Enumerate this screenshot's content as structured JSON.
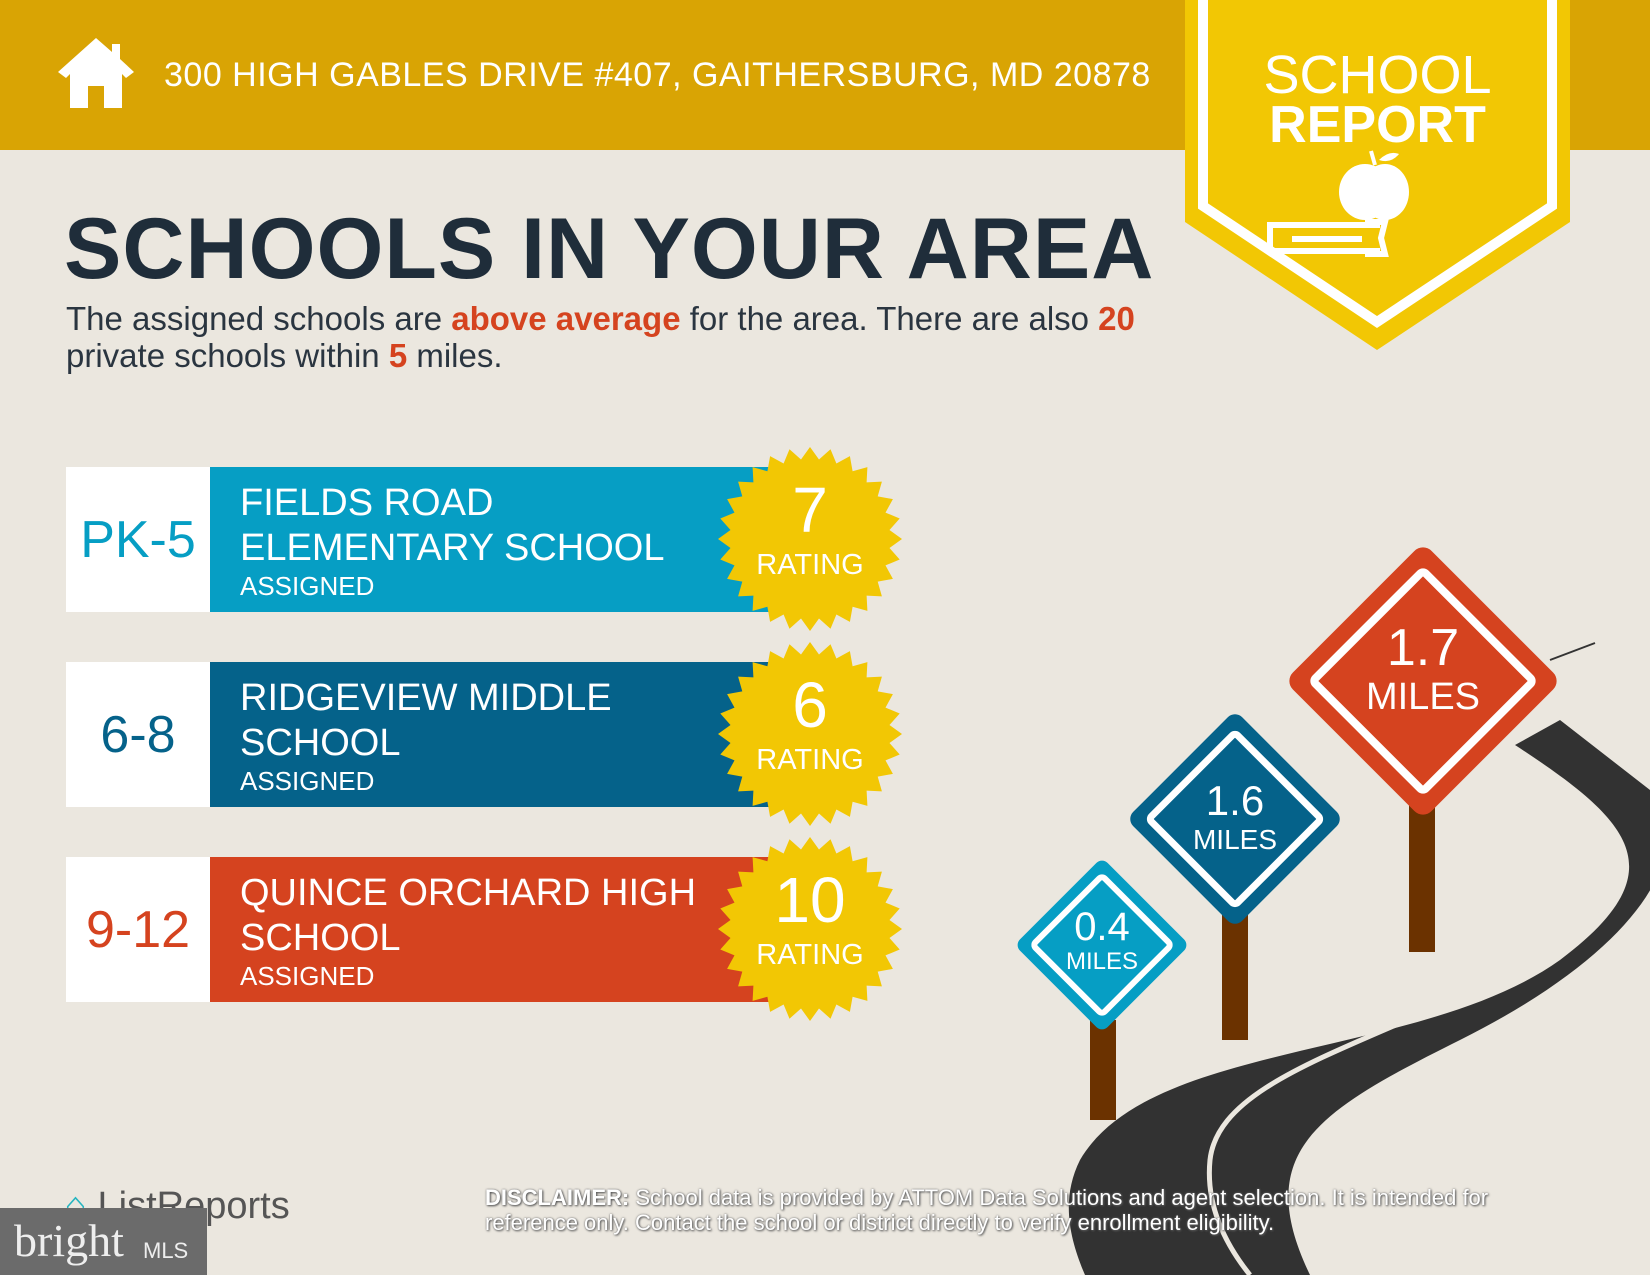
{
  "header": {
    "address": "300 HIGH GABLES DRIVE #407, GAITHERSBURG, MD 20878",
    "icon": "house-icon"
  },
  "badge": {
    "line1": "SCHOOL",
    "line2": "REPORT",
    "icon": "apple-on-book-icon"
  },
  "title": "SCHOOLS IN YOUR AREA",
  "subtitle": {
    "p1": "The assigned schools are ",
    "highlight": "above average",
    "p2": " for the area. There are also ",
    "count": "20",
    "p3": " private schools within ",
    "miles": "5",
    "p4": " miles."
  },
  "schools": [
    {
      "grade": "PK-5",
      "name1": "FIELDS ROAD",
      "name2": "ELEMENTARY SCHOOL",
      "status": "ASSIGNED",
      "rating": "7",
      "rating_label": "RATING",
      "distance": "0.4",
      "distance_unit": "MILES",
      "color": "#069ec4"
    },
    {
      "grade": "6-8",
      "name1": "RIDGEVIEW MIDDLE",
      "name2": "SCHOOL",
      "status": "ASSIGNED",
      "rating": "6",
      "rating_label": "RATING",
      "distance": "1.6",
      "distance_unit": "MILES",
      "color": "#05628a"
    },
    {
      "grade": "9-12",
      "name1": "QUINCE ORCHARD HIGH",
      "name2": "SCHOOL",
      "status": "ASSIGNED",
      "rating": "10",
      "rating_label": "RATING",
      "distance": "1.7",
      "distance_unit": "MILES",
      "color": "#d5431f"
    }
  ],
  "footer": {
    "disclaimer_label": "DISCLAIMER:",
    "disclaimer": " School data is provided by ATTOM Data Solutions and agent selection. It is intended for reference only. Contact the school or district directly to verify enrollment eligibility.",
    "listreports": "ListReports",
    "bright": "bright",
    "mls": "MLS"
  },
  "colors": {
    "header": "#d9a404",
    "badge": "#f2c704",
    "navy": "#1f2d3a",
    "accent": "#d5431f",
    "background": "#ebe7df"
  }
}
